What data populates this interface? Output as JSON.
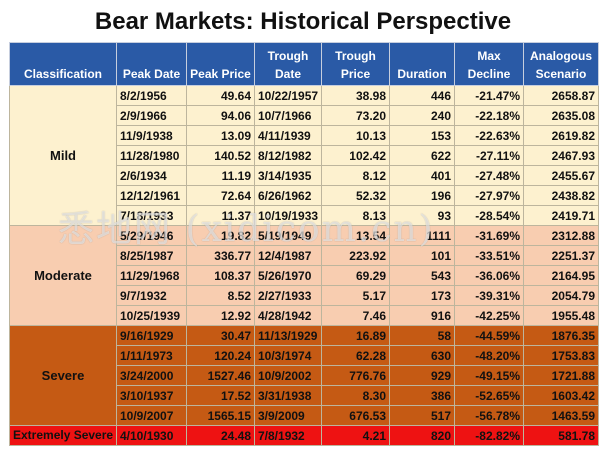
{
  "title": "Bear Markets:  Historical Perspective",
  "watermark": "悉地网 (xidicom.cn)",
  "colors": {
    "header": "#2a5aa6",
    "mild": "#fdf1cf",
    "moderate": "#f8cdb0",
    "severe": "#c55a14",
    "extreme": "#ee1212"
  },
  "headers": [
    "Classification",
    "Peak Date",
    "Peak Price",
    "Trough Date",
    "Trough Price",
    "Duration",
    "Max Decline",
    "Analogous Scenario"
  ],
  "groups": [
    {
      "classification": "Mild",
      "rows": [
        [
          "8/2/1956",
          "49.64",
          "10/22/1957",
          "38.98",
          "446",
          "-21.47%",
          "2658.87"
        ],
        [
          "2/9/1966",
          "94.06",
          "10/7/1966",
          "73.20",
          "240",
          "-22.18%",
          "2635.08"
        ],
        [
          "11/9/1938",
          "13.09",
          "4/11/1939",
          "10.13",
          "153",
          "-22.63%",
          "2619.82"
        ],
        [
          "11/28/1980",
          "140.52",
          "8/12/1982",
          "102.42",
          "622",
          "-27.11%",
          "2467.93"
        ],
        [
          "2/6/1934",
          "11.19",
          "3/14/1935",
          "8.12",
          "401",
          "-27.48%",
          "2455.67"
        ],
        [
          "12/12/1961",
          "72.64",
          "6/26/1962",
          "52.32",
          "196",
          "-27.97%",
          "2438.82"
        ],
        [
          "7/18/1933",
          "11.37",
          "10/19/1933",
          "8.13",
          "93",
          "-28.54%",
          "2419.71"
        ]
      ]
    },
    {
      "classification": "Moderate",
      "rows": [
        [
          "5/29/1946",
          "19.82",
          "5/19/1949",
          "13.54",
          "1111",
          "-31.69%",
          "2312.88"
        ],
        [
          "8/25/1987",
          "336.77",
          "12/4/1987",
          "223.92",
          "101",
          "-33.51%",
          "2251.37"
        ],
        [
          "11/29/1968",
          "108.37",
          "5/26/1970",
          "69.29",
          "543",
          "-36.06%",
          "2164.95"
        ],
        [
          "9/7/1932",
          "8.52",
          "2/27/1933",
          "5.17",
          "173",
          "-39.31%",
          "2054.79"
        ],
        [
          "10/25/1939",
          "12.92",
          "4/28/1942",
          "7.46",
          "916",
          "-42.25%",
          "1955.48"
        ]
      ]
    },
    {
      "classification": "Severe",
      "rows": [
        [
          "9/16/1929",
          "30.47",
          "11/13/1929",
          "16.89",
          "58",
          "-44.59%",
          "1876.35"
        ],
        [
          "1/11/1973",
          "120.24",
          "10/3/1974",
          "62.28",
          "630",
          "-48.20%",
          "1753.83"
        ],
        [
          "3/24/2000",
          "1527.46",
          "10/9/2002",
          "776.76",
          "929",
          "-49.15%",
          "1721.88"
        ],
        [
          "3/10/1937",
          "17.52",
          "3/31/1938",
          "8.30",
          "386",
          "-52.65%",
          "1603.42"
        ],
        [
          "10/9/2007",
          "1565.15",
          "3/9/2009",
          "676.53",
          "517",
          "-56.78%",
          "1463.59"
        ]
      ]
    },
    {
      "classification": "Extremely Severe",
      "rows": [
        [
          "4/10/1930",
          "24.48",
          "7/8/1932",
          "4.21",
          "820",
          "-82.82%",
          "581.78"
        ]
      ]
    }
  ]
}
